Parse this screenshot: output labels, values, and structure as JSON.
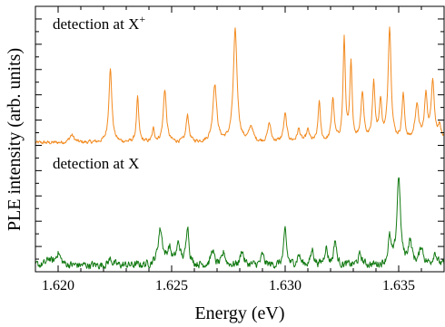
{
  "chart_data": {
    "type": "line",
    "xlabel": "Energy (eV)",
    "ylabel": "PLE intensity (arb. units)",
    "xlim": [
      1.619,
      1.637
    ],
    "ylim": [
      0,
      2.1
    ],
    "x_ticks": [
      "1.620",
      "1.625",
      "1.630",
      "1.635"
    ],
    "y_tick_labels_shown": false,
    "grid": false,
    "legend": "none",
    "annotations": [
      {
        "text": "detection at X",
        "superscript": "+",
        "series": "upper"
      },
      {
        "text": "detection at X",
        "superscript": "",
        "series": "lower"
      }
    ],
    "series": [
      {
        "color": "#f28a1f",
        "baseline": 1.02,
        "noise": 0.012,
        "peaks": [
          {
            "x": 1.6206,
            "h": 0.06,
            "w": 0.00012
          },
          {
            "x": 1.6223,
            "h": 0.58,
            "w": 8e-05
          },
          {
            "x": 1.6235,
            "h": 0.35,
            "w": 6e-05
          },
          {
            "x": 1.6242,
            "h": 0.1,
            "w": 6e-05
          },
          {
            "x": 1.6247,
            "h": 0.42,
            "w": 8e-05
          },
          {
            "x": 1.6257,
            "h": 0.22,
            "w": 7e-05
          },
          {
            "x": 1.6269,
            "h": 0.46,
            "w": 0.0001
          },
          {
            "x": 1.6278,
            "h": 0.88,
            "w": 0.0001
          },
          {
            "x": 1.6285,
            "h": 0.12,
            "w": 0.0001
          },
          {
            "x": 1.6293,
            "h": 0.15,
            "w": 8e-05
          },
          {
            "x": 1.63,
            "h": 0.22,
            "w": 8e-05
          },
          {
            "x": 1.6306,
            "h": 0.1,
            "w": 8e-05
          },
          {
            "x": 1.631,
            "h": 0.09,
            "w": 8e-05
          },
          {
            "x": 1.6315,
            "h": 0.32,
            "w": 6e-05
          },
          {
            "x": 1.6321,
            "h": 0.34,
            "w": 7e-05
          },
          {
            "x": 1.6326,
            "h": 0.8,
            "w": 6e-05
          },
          {
            "x": 1.6329,
            "h": 0.6,
            "w": 6e-05
          },
          {
            "x": 1.6334,
            "h": 0.38,
            "w": 8e-05
          },
          {
            "x": 1.6339,
            "h": 0.46,
            "w": 7e-05
          },
          {
            "x": 1.6342,
            "h": 0.3,
            "w": 7e-05
          },
          {
            "x": 1.6346,
            "h": 0.9,
            "w": 8e-05
          },
          {
            "x": 1.6352,
            "h": 0.36,
            "w": 7e-05
          },
          {
            "x": 1.6358,
            "h": 0.28,
            "w": 0.0001
          },
          {
            "x": 1.6362,
            "h": 0.35,
            "w": 8e-05
          },
          {
            "x": 1.6365,
            "h": 0.48,
            "w": 8e-05
          },
          {
            "x": 1.6368,
            "h": 0.12,
            "w": 0.0001
          }
        ]
      },
      {
        "color": "#137a13",
        "baseline": 0.05,
        "noise": 0.025,
        "peaks": [
          {
            "x": 1.6196,
            "h": 0.05,
            "w": 0.0001
          },
          {
            "x": 1.62,
            "h": 0.1,
            "w": 0.00012
          },
          {
            "x": 1.6223,
            "h": 0.05,
            "w": 0.0001
          },
          {
            "x": 1.6245,
            "h": 0.28,
            "w": 0.00012
          },
          {
            "x": 1.6249,
            "h": 0.12,
            "w": 0.0001
          },
          {
            "x": 1.6253,
            "h": 0.16,
            "w": 0.0001
          },
          {
            "x": 1.6257,
            "h": 0.32,
            "w": 7e-05
          },
          {
            "x": 1.6268,
            "h": 0.12,
            "w": 8e-05
          },
          {
            "x": 1.6273,
            "h": 0.1,
            "w": 8e-05
          },
          {
            "x": 1.6281,
            "h": 0.12,
            "w": 8e-05
          },
          {
            "x": 1.629,
            "h": 0.08,
            "w": 8e-05
          },
          {
            "x": 1.63,
            "h": 0.28,
            "w": 7e-05
          },
          {
            "x": 1.6306,
            "h": 0.08,
            "w": 8e-05
          },
          {
            "x": 1.6312,
            "h": 0.12,
            "w": 8e-05
          },
          {
            "x": 1.6318,
            "h": 0.14,
            "w": 8e-05
          },
          {
            "x": 1.6322,
            "h": 0.2,
            "w": 7e-05
          },
          {
            "x": 1.6333,
            "h": 0.08,
            "w": 0.0001
          },
          {
            "x": 1.6346,
            "h": 0.2,
            "w": 8e-05
          },
          {
            "x": 1.635,
            "h": 0.7,
            "w": 9e-05
          },
          {
            "x": 1.6355,
            "h": 0.18,
            "w": 0.0001
          },
          {
            "x": 1.636,
            "h": 0.14,
            "w": 0.0001
          },
          {
            "x": 1.6366,
            "h": 0.1,
            "w": 0.0001
          }
        ]
      }
    ]
  }
}
